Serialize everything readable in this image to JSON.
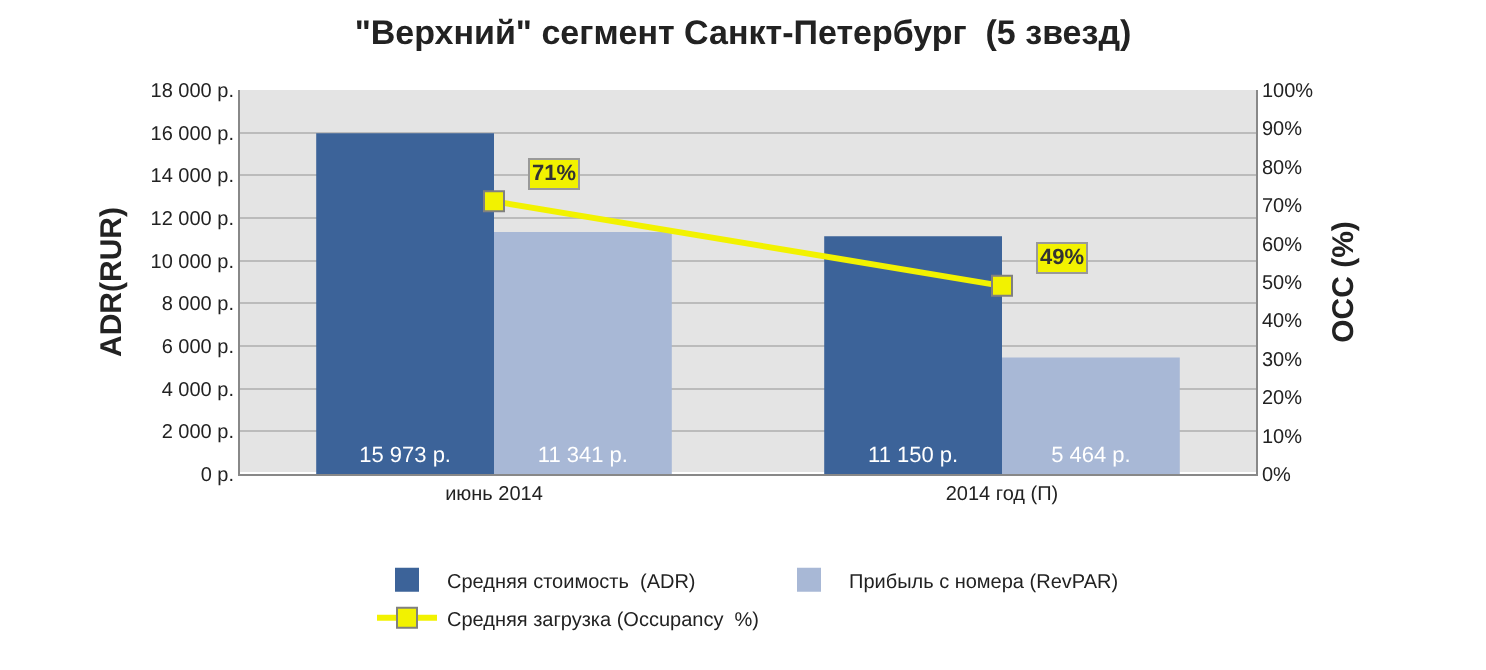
{
  "chart_data": {
    "type": "bar",
    "title": "\"Верхний\" сегмент Санкт-Петербург  (5 звезд)",
    "categories": [
      "июнь 2014",
      "2014 год (П)"
    ],
    "ylabel": "ADR(RUR)",
    "y2label": "OCC (%)",
    "series": [
      {
        "name": "Средняя стоимость  (ADR)",
        "color": "#3c6399",
        "values": [
          15973,
          11150
        ],
        "value_labels": [
          "15 973 р.",
          "11 150 р."
        ]
      },
      {
        "name": "Прибыль с номера (RevPAR)",
        "color": "#a8b8d6",
        "values": [
          11341,
          5464
        ],
        "value_labels": [
          "11 341 р.",
          "5 464 р."
        ]
      },
      {
        "name": "Средняя загрузка (Occupancy  %)",
        "type": "line",
        "axis": "y2",
        "color": "#f2f200",
        "marker": "square",
        "values": [
          71,
          49
        ],
        "value_labels": [
          "71%",
          "49%"
        ]
      }
    ],
    "ylim": [
      0,
      18000
    ],
    "yticks": [
      {
        "value": 0,
        "label": "0 р."
      },
      {
        "value": 2000,
        "label": "2 000 р."
      },
      {
        "value": 4000,
        "label": "4 000 р."
      },
      {
        "value": 6000,
        "label": "6 000 р."
      },
      {
        "value": 8000,
        "label": "8 000 р."
      },
      {
        "value": 10000,
        "label": "10 000 р."
      },
      {
        "value": 12000,
        "label": "12 000 р."
      },
      {
        "value": 14000,
        "label": "14 000 р."
      },
      {
        "value": 16000,
        "label": "16 000 р."
      },
      {
        "value": 18000,
        "label": "18 000 р."
      }
    ],
    "y2lim": [
      0,
      100
    ],
    "y2ticks": [
      {
        "value": 0,
        "label": "0%"
      },
      {
        "value": 10,
        "label": "10%"
      },
      {
        "value": 20,
        "label": "20%"
      },
      {
        "value": 30,
        "label": "30%"
      },
      {
        "value": 40,
        "label": "40%"
      },
      {
        "value": 50,
        "label": "50%"
      },
      {
        "value": 60,
        "label": "60%"
      },
      {
        "value": 70,
        "label": "70%"
      },
      {
        "value": 80,
        "label": "80%"
      },
      {
        "value": 90,
        "label": "90%"
      },
      {
        "value": 100,
        "label": "100%"
      }
    ],
    "grid": "y",
    "legend": "bottom"
  }
}
